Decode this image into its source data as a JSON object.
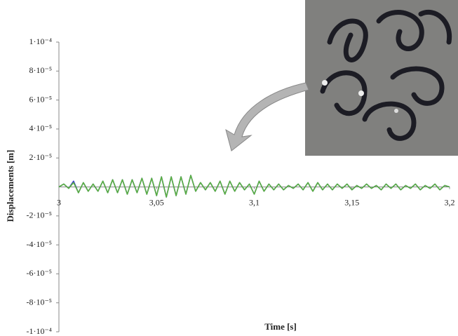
{
  "chart_data": {
    "type": "line",
    "y_label": "Displacements   [m]",
    "x_label": "Time      [s]",
    "xlim": [
      3,
      3.2
    ],
    "xticks": [
      3,
      {
        "value": 3.05,
        "label": "3,05"
      },
      {
        "value": 3.1,
        "label": "3,1"
      },
      {
        "value": 3.15,
        "label": "3,15"
      },
      {
        "value": 3.2,
        "label": "3,2"
      }
    ],
    "ylim": [
      -0.0001,
      0.0001
    ],
    "yticks": [
      {
        "value": 0.0001,
        "label": "1·10⁻⁴"
      },
      {
        "value": 8e-05,
        "label": "8·10⁻⁵"
      },
      {
        "value": 6e-05,
        "label": "6·10⁻⁵"
      },
      {
        "value": 4e-05,
        "label": "4·10⁻⁵"
      },
      {
        "value": 2e-05,
        "label": "2·10⁻⁵"
      },
      {
        "value": -2e-05,
        "label": "-2·10⁻⁵"
      },
      {
        "value": -4e-05,
        "label": "-4·10⁻⁵"
      },
      {
        "value": -6e-05,
        "label": "-6·10⁻⁵"
      },
      {
        "value": -8e-05,
        "label": "-8·10⁻⁵"
      },
      {
        "value": -0.0001,
        "label": "-1·10⁻⁴"
      }
    ],
    "x": [
      3,
      3.0025,
      3.005,
      3.0075,
      3.01,
      3.0125,
      3.015,
      3.0175,
      3.02,
      3.0225,
      3.025,
      3.0275,
      3.03,
      3.0325,
      3.035,
      3.0375,
      3.04,
      3.0425,
      3.045,
      3.0475,
      3.05,
      3.0525,
      3.055,
      3.0575,
      3.06,
      3.0625,
      3.065,
      3.0675,
      3.07,
      3.0725,
      3.075,
      3.0775,
      3.08,
      3.0825,
      3.085,
      3.0875,
      3.09,
      3.0925,
      3.095,
      3.0975,
      3.1,
      3.1025,
      3.105,
      3.1075,
      3.11,
      3.1125,
      3.115,
      3.1175,
      3.12,
      3.1225,
      3.125,
      3.1275,
      3.13,
      3.1325,
      3.135,
      3.1375,
      3.14,
      3.1425,
      3.145,
      3.1475,
      3.15,
      3.1525,
      3.155,
      3.1575,
      3.16,
      3.1625,
      3.165,
      3.1675,
      3.17,
      3.1725,
      3.175,
      3.1775,
      3.18,
      3.1825,
      3.185,
      3.1875,
      3.19,
      3.1925,
      3.195,
      3.1975,
      3.2
    ],
    "series": [
      {
        "color": "#3a3ad0",
        "values": [
          0,
          2e-06,
          -1e-06,
          4e-06,
          -4e-06,
          3e-06,
          -3e-06,
          2e-06,
          -3e-06,
          4e-06,
          -4e-06,
          5e-06,
          -4e-06,
          5e-06,
          -5e-06,
          5e-06,
          -4e-06,
          6e-06,
          -5e-06,
          6e-06,
          -6e-06,
          7e-06,
          -7e-06,
          7e-06,
          -6e-06,
          7e-06,
          -5e-06,
          8e-06,
          -3e-06,
          3e-06,
          -2e-06,
          3e-06,
          -3e-06,
          4e-06,
          -5e-06,
          4e-06,
          -3e-06,
          3e-06,
          -2e-06,
          2e-06,
          -5e-06,
          4e-06,
          -3e-06,
          2e-06,
          -2e-06,
          2e-06,
          -2e-06,
          1e-06,
          -1e-06,
          2e-06,
          -2e-06,
          3e-06,
          -3e-06,
          3e-06,
          -2e-06,
          2e-06,
          -2e-06,
          2e-06,
          -1e-06,
          2e-06,
          -2e-06,
          1e-06,
          -1e-06,
          2e-06,
          -1e-06,
          1e-06,
          -2e-06,
          2e-06,
          -1e-06,
          2e-06,
          -2e-06,
          1e-06,
          -1e-06,
          2e-06,
          -2e-06,
          1e-06,
          -1e-06,
          2e-06,
          -2e-06,
          1e-06,
          0
        ]
      },
      {
        "color": "#5ab040",
        "values": [
          0,
          2e-06,
          -1e-06,
          3e-06,
          -4e-06,
          3e-06,
          -3e-06,
          2e-06,
          -3e-06,
          4e-06,
          -4e-06,
          5e-06,
          -4e-06,
          5e-06,
          -5e-06,
          5e-06,
          -4e-06,
          6e-06,
          -5e-06,
          6e-06,
          -6e-06,
          7e-06,
          -7e-06,
          7e-06,
          -6e-06,
          7e-06,
          -5e-06,
          8e-06,
          -3e-06,
          3e-06,
          -2e-06,
          3e-06,
          -3e-06,
          4e-06,
          -5e-06,
          4e-06,
          -3e-06,
          3e-06,
          -2e-06,
          2e-06,
          -5e-06,
          4e-06,
          -3e-06,
          2e-06,
          -2e-06,
          2e-06,
          -2e-06,
          1e-06,
          -1e-06,
          2e-06,
          -2e-06,
          3e-06,
          -3e-06,
          3e-06,
          -2e-06,
          2e-06,
          -2e-06,
          2e-06,
          -1e-06,
          2e-06,
          -2e-06,
          1e-06,
          -1e-06,
          2e-06,
          -1e-06,
          1e-06,
          -2e-06,
          2e-06,
          -1e-06,
          2e-06,
          -2e-06,
          1e-06,
          -1e-06,
          2e-06,
          -2e-06,
          1e-06,
          -1e-06,
          2e-06,
          -2e-06,
          1e-06,
          0
        ]
      }
    ]
  }
}
